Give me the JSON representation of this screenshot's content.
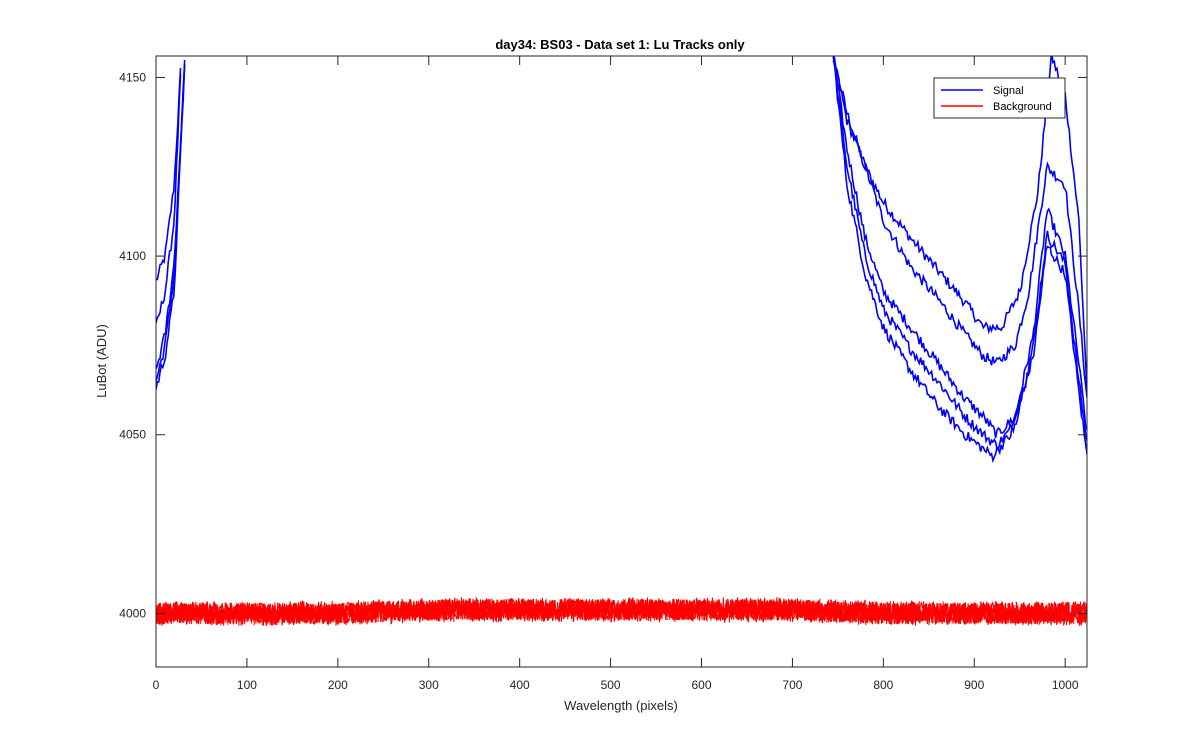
{
  "chart_data": {
    "type": "line",
    "title": "day34: BS03 - Data set 1: Lu Tracks only",
    "xlabel": "Wavelength (pixels)",
    "ylabel": "LuBot (ADU)",
    "xlim": [
      0,
      1024
    ],
    "ylim": [
      3985,
      4156
    ],
    "xticks": [
      0,
      100,
      200,
      300,
      400,
      500,
      600,
      700,
      800,
      900,
      1000
    ],
    "yticks": [
      4000,
      4050,
      4100,
      4150
    ],
    "legend": {
      "placement": "top-right",
      "entries": [
        "Signal",
        "Background"
      ]
    },
    "colors": {
      "signal": "#0000ff",
      "background": "#ff0000",
      "axis": "#262626"
    },
    "grid": false,
    "series": [
      {
        "name": "Signal",
        "color": "#0000ff",
        "x": [
          0,
          10,
          20,
          28,
          745,
          760,
          780,
          800,
          830,
          860,
          890,
          910,
          930,
          950,
          970,
          985,
          1000,
          1015,
          1024
        ],
        "y": [
          4093,
          4100,
          4120,
          4156,
          4156,
          4140,
          4125,
          4115,
          4105,
          4096,
          4087,
          4080,
          4080,
          4090,
          4118,
          4156,
          4145,
          4110,
          4062
        ]
      },
      {
        "name": "",
        "color": "#0000ff",
        "x": [
          0,
          10,
          20,
          28,
          745,
          760,
          780,
          800,
          830,
          860,
          890,
          910,
          925,
          945,
          960,
          980,
          1000,
          1015,
          1024
        ],
        "y": [
          4080,
          4090,
          4110,
          4156,
          4156,
          4138,
          4125,
          4110,
          4097,
          4088,
          4078,
          4072,
          4070,
          4075,
          4090,
          4125,
          4120,
          4085,
          4060
        ]
      },
      {
        "name": "",
        "color": "#0000ff",
        "x": [
          0,
          10,
          20,
          32,
          745,
          760,
          780,
          800,
          830,
          860,
          890,
          910,
          925,
          945,
          965,
          980,
          1000,
          1015,
          1024
        ],
        "y": [
          4065,
          4075,
          4095,
          4156,
          4156,
          4130,
          4105,
          4090,
          4080,
          4070,
          4060,
          4055,
          4050,
          4055,
          4078,
          4113,
          4100,
          4070,
          4050
        ]
      },
      {
        "name": "",
        "color": "#0000ff",
        "x": [
          0,
          10,
          20,
          32,
          745,
          760,
          780,
          800,
          830,
          860,
          890,
          910,
          925,
          945,
          965,
          980,
          1000,
          1015,
          1024
        ],
        "y": [
          4068,
          4078,
          4098,
          4156,
          4156,
          4125,
          4100,
          4085,
          4074,
          4065,
          4055,
          4050,
          4047,
          4053,
          4075,
          4106,
          4098,
          4065,
          4048
        ]
      },
      {
        "name": "",
        "color": "#0000ff",
        "x": [
          0,
          10,
          20,
          32,
          745,
          760,
          780,
          800,
          830,
          860,
          890,
          910,
          920,
          940,
          965,
          980,
          1000,
          1015,
          1024
        ],
        "y": [
          4063,
          4072,
          4090,
          4156,
          4156,
          4120,
          4095,
          4080,
          4068,
          4058,
          4050,
          4046,
          4044,
          4050,
          4072,
          4103,
          4095,
          4062,
          4044
        ]
      },
      {
        "name": "Background",
        "color": "#ff0000",
        "x": [
          0,
          100,
          200,
          300,
          400,
          500,
          600,
          700,
          800,
          900,
          1000,
          1024
        ],
        "y": [
          4000,
          4000,
          4000,
          4001,
          4001,
          4001,
          4001,
          4001,
          4000,
          4000,
          4000,
          4000
        ]
      }
    ]
  }
}
